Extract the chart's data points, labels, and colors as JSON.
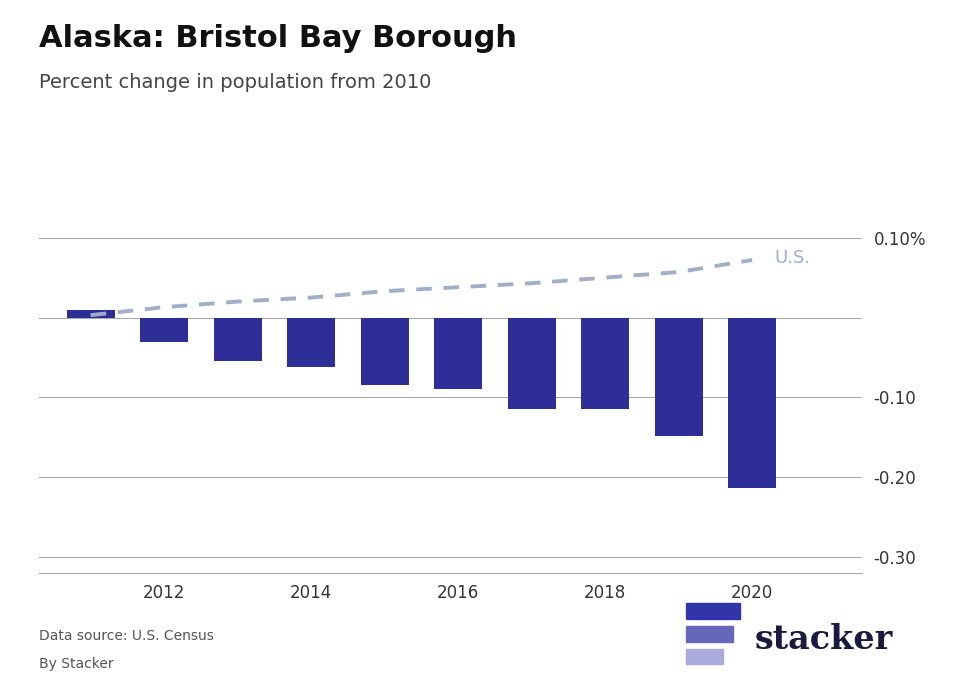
{
  "title": "Alaska: Bristol Bay Borough",
  "subtitle": "Percent change in population from 2010",
  "years": [
    2011,
    2012,
    2013,
    2014,
    2015,
    2016,
    2017,
    2018,
    2019,
    2020
  ],
  "borough_values": [
    0.01,
    -0.03,
    -0.055,
    -0.062,
    -0.085,
    -0.09,
    -0.115,
    -0.115,
    -0.148,
    -0.2136
  ],
  "us_values": [
    0.003,
    0.013,
    0.02,
    0.025,
    0.033,
    0.038,
    0.043,
    0.05,
    0.057,
    0.072
  ],
  "bar_color": "#2E2E99",
  "us_line_color": "#A0AECA",
  "ylim": [
    -0.32,
    0.135
  ],
  "yticks": [
    0.1,
    0.0,
    -0.1,
    -0.2,
    -0.3
  ],
  "ytick_labels": [
    "0.10%",
    "",
    "-0.10",
    "-0.20",
    "-0.30"
  ],
  "data_source": "Data source: U.S. Census",
  "by_line": "By Stacker",
  "background_color": "#FFFFFF",
  "us_label": "U.S.",
  "us_label_color": "#A0AECA",
  "title_fontsize": 22,
  "subtitle_fontsize": 14,
  "axis_fontsize": 12,
  "stacker_text_color": "#1a1a3e",
  "stacker_line1_color": "#3333aa",
  "stacker_line2_color": "#6666bb",
  "stacker_line3_color": "#aaaadd"
}
